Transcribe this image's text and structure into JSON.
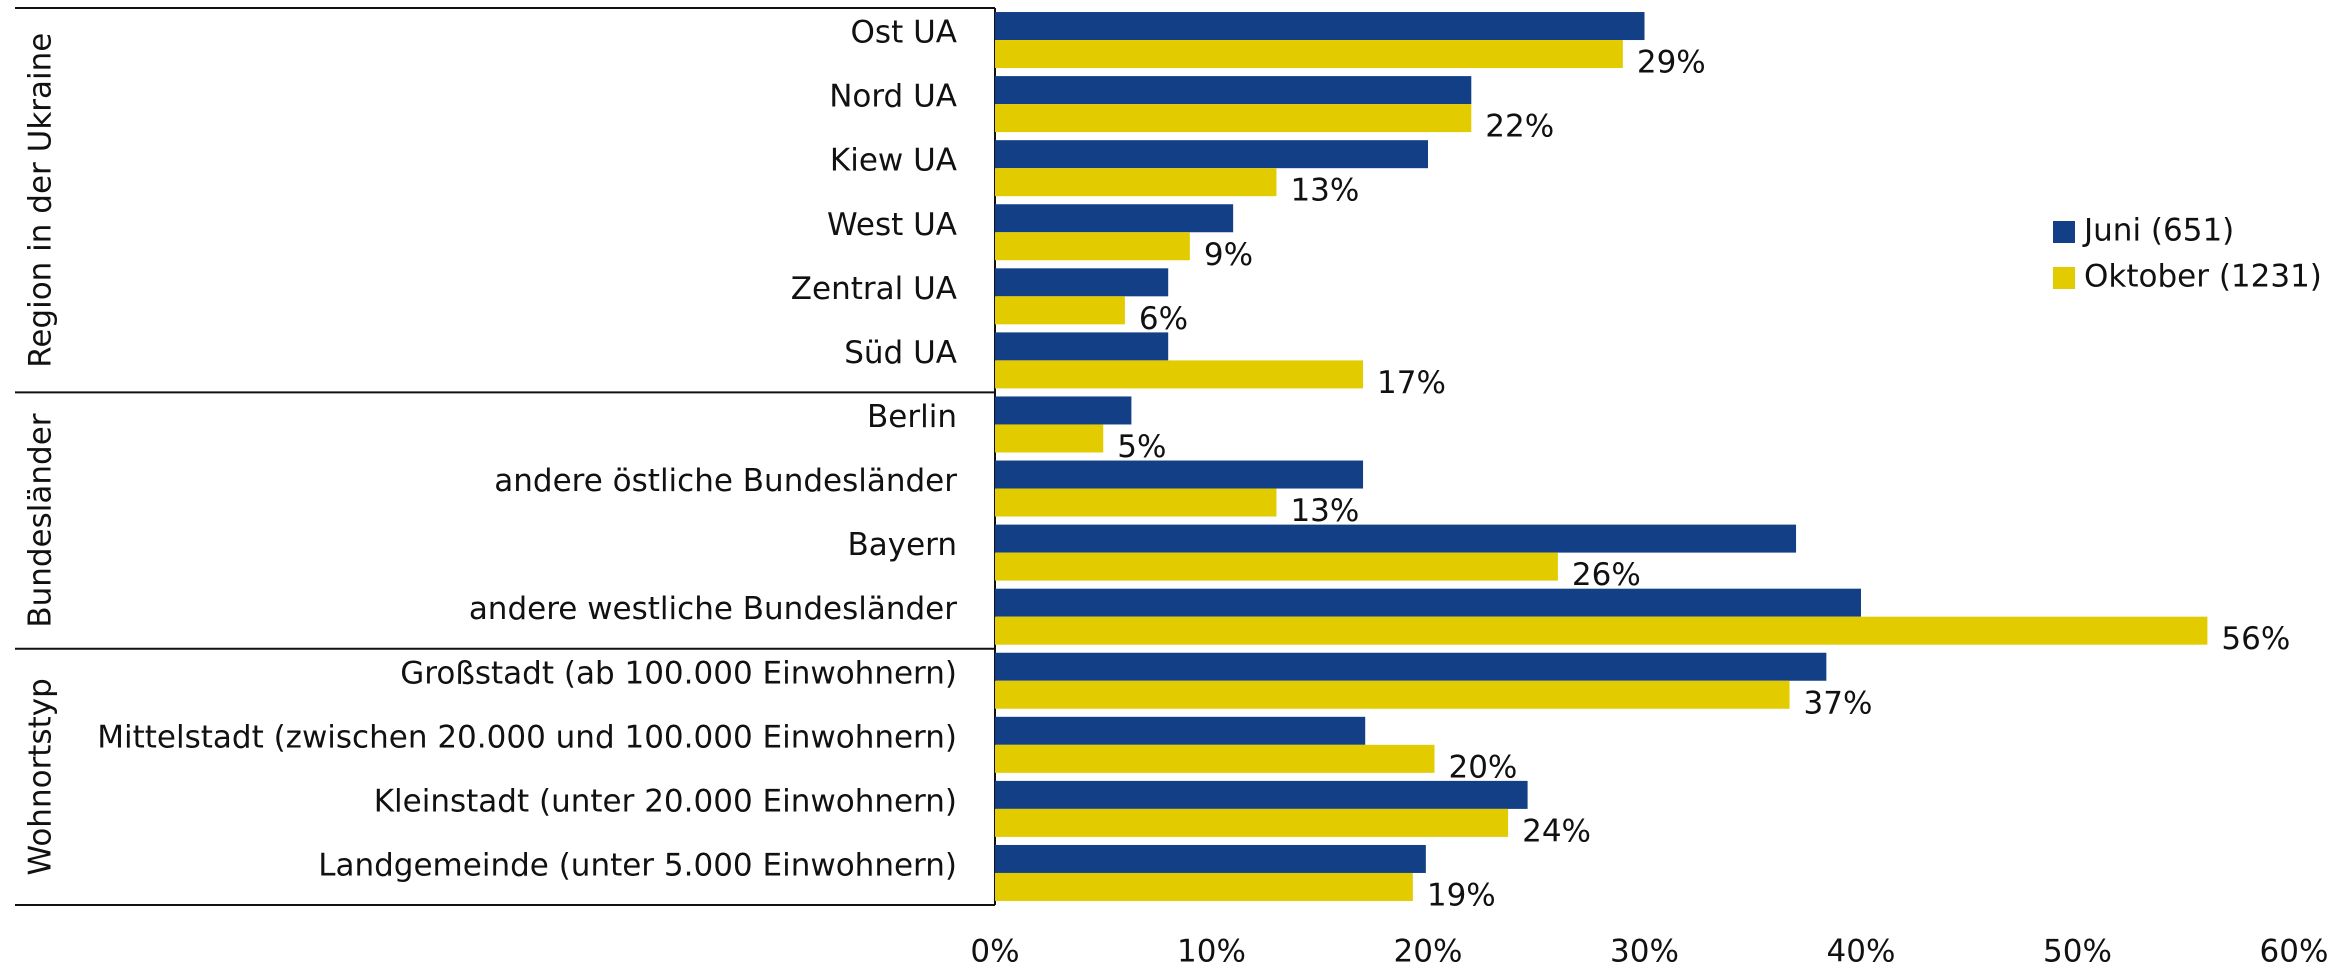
{
  "chart_data": {
    "type": "bar",
    "orientation": "horizontal",
    "groups": [
      {
        "name": "Region in der Ukraine",
        "categories": [
          "Ost UA",
          "Nord UA",
          "Kiew UA",
          "West UA",
          "Zentral UA",
          "Süd UA"
        ]
      },
      {
        "name": "Bundesländer",
        "categories": [
          "Berlin",
          "andere östliche Bundesländer",
          "Bayern",
          "andere westliche Bundesländer"
        ]
      },
      {
        "name": "Wohnortstyp",
        "categories": [
          "Großstadt (ab 100.000 Einwohnern)",
          "Mittelstadt (zwischen 20.000 und 100.000 Einwohnern)",
          "Kleinstadt (unter 20.000 Einwohnern)",
          "Landgemeinde (unter 5.000 Einwohnern)"
        ]
      }
    ],
    "series": [
      {
        "name": "Juni (651)",
        "color": "#123f85",
        "values": [
          30,
          22,
          20,
          11,
          8,
          8,
          6.3,
          17,
          37,
          40,
          38.4,
          17.1,
          24.6,
          19.9
        ]
      },
      {
        "name": "Oktober (1231)",
        "color": "#e2cc00",
        "values": [
          29,
          22,
          13,
          9,
          6,
          17,
          5,
          13,
          26,
          56,
          36.7,
          20.3,
          23.7,
          19.3
        ],
        "value_labels": [
          "29%",
          "22%",
          "13%",
          "9%",
          "6%",
          "17%",
          "5%",
          "13%",
          "26%",
          "56%",
          "37%",
          "20%",
          "24%",
          "19%"
        ]
      }
    ],
    "xlim": [
      0,
      60
    ],
    "xticks": [
      {
        "value": 0,
        "label": "0%"
      },
      {
        "value": 10,
        "label": "10%"
      },
      {
        "value": 20,
        "label": "20%"
      },
      {
        "value": 30,
        "label": "30%"
      },
      {
        "value": 40,
        "label": "40%"
      },
      {
        "value": 50,
        "label": "50%"
      },
      {
        "value": 60,
        "label": "60%"
      }
    ],
    "legend": "right",
    "grid": false
  }
}
